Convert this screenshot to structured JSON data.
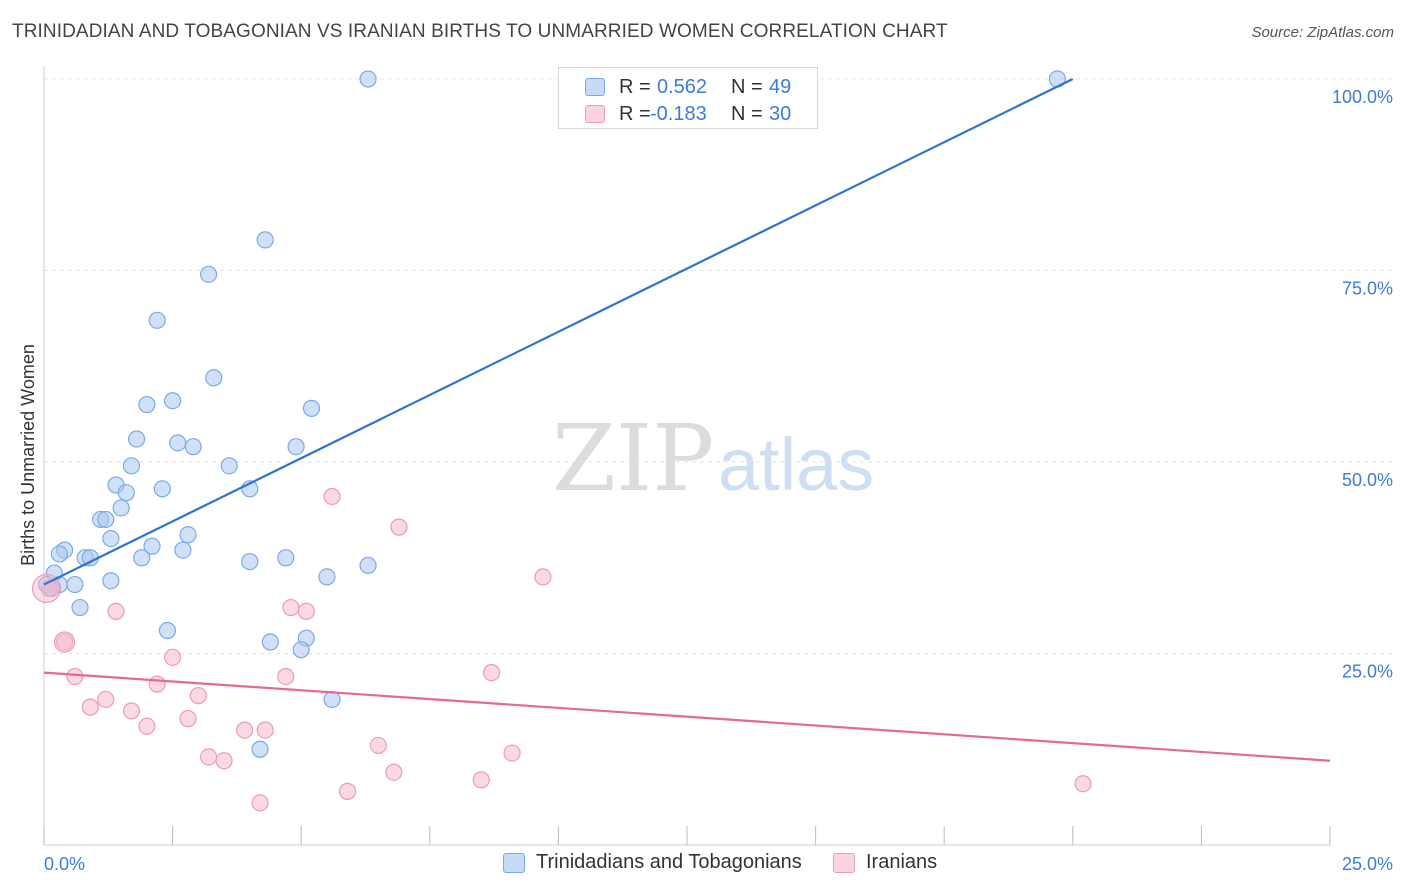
{
  "header": {
    "title": "TRINIDADIAN AND TOBAGONIAN VS IRANIAN BIRTHS TO UNMARRIED WOMEN CORRELATION CHART",
    "source": "Source: ZipAtlas.com"
  },
  "watermark": {
    "zip": "ZIP",
    "atlas": "atlas"
  },
  "stats_legend": [
    {
      "r_label": "R =",
      "r_value": "0.562",
      "n_label": "N =",
      "n_value": "49",
      "color": "#a9c8f1"
    },
    {
      "r_label": "R =",
      "r_value": "-0.183",
      "n_label": "N =",
      "n_value": "30",
      "color": "#f6bacb"
    }
  ],
  "bottom_legend": [
    {
      "label": "Trinidadians and Tobagonians",
      "color": "#a9c8f1"
    },
    {
      "label": "Iranians",
      "color": "#f6bacb"
    }
  ],
  "chart_data": {
    "type": "scatter",
    "title": "TRINIDADIAN AND TOBAGONIAN VS IRANIAN BIRTHS TO UNMARRIED WOMEN CORRELATION CHART",
    "xlabel": "",
    "ylabel": "Births to Unmarried Women",
    "xlim": [
      0,
      25
    ],
    "ylim": [
      0,
      100
    ],
    "x_tick_labels": [
      "0.0%",
      "25.0%"
    ],
    "y_ticks": [
      25,
      50,
      75,
      100
    ],
    "y_tick_labels": [
      "25.0%",
      "50.0%",
      "75.0%",
      "100.0%"
    ],
    "grid": "horizontal dashed",
    "legend": "top-center and bottom",
    "series": [
      {
        "name": "Trinidadians and Tobagonians",
        "color": "#7aaae6",
        "fill": "#a9c8f1",
        "trend": {
          "x": [
            0,
            20
          ],
          "y": [
            34,
            100
          ]
        },
        "points": [
          {
            "x": 6.3,
            "y": 100
          },
          {
            "x": 19.7,
            "y": 100
          },
          {
            "x": 4.3,
            "y": 79
          },
          {
            "x": 3.2,
            "y": 74.5
          },
          {
            "x": 2.2,
            "y": 68.5
          },
          {
            "x": 3.3,
            "y": 61
          },
          {
            "x": 2.0,
            "y": 57.5
          },
          {
            "x": 5.2,
            "y": 57
          },
          {
            "x": 2.5,
            "y": 58
          },
          {
            "x": 1.8,
            "y": 53
          },
          {
            "x": 2.6,
            "y": 52.5
          },
          {
            "x": 2.9,
            "y": 52
          },
          {
            "x": 4.9,
            "y": 52
          },
          {
            "x": 1.7,
            "y": 49.5
          },
          {
            "x": 3.6,
            "y": 49.5
          },
          {
            "x": 1.4,
            "y": 47
          },
          {
            "x": 1.6,
            "y": 46
          },
          {
            "x": 2.3,
            "y": 46.5
          },
          {
            "x": 4.0,
            "y": 46.5
          },
          {
            "x": 1.5,
            "y": 44
          },
          {
            "x": 1.1,
            "y": 42.5
          },
          {
            "x": 1.2,
            "y": 42.5
          },
          {
            "x": 2.8,
            "y": 40.5
          },
          {
            "x": 1.3,
            "y": 40
          },
          {
            "x": 2.1,
            "y": 39
          },
          {
            "x": 0.4,
            "y": 38.5
          },
          {
            "x": 0.3,
            "y": 38
          },
          {
            "x": 1.9,
            "y": 37.5
          },
          {
            "x": 2.7,
            "y": 38.5
          },
          {
            "x": 0.8,
            "y": 37.5
          },
          {
            "x": 0.9,
            "y": 37.5
          },
          {
            "x": 4.7,
            "y": 37.5
          },
          {
            "x": 4.0,
            "y": 37
          },
          {
            "x": 6.3,
            "y": 36.5
          },
          {
            "x": 0.2,
            "y": 35.5
          },
          {
            "x": 1.3,
            "y": 34.5
          },
          {
            "x": 5.5,
            "y": 35
          },
          {
            "x": 0.1,
            "y": 33.5
          },
          {
            "x": 0.3,
            "y": 34
          },
          {
            "x": 0.6,
            "y": 34
          },
          {
            "x": 0.7,
            "y": 31
          },
          {
            "x": 2.4,
            "y": 28
          },
          {
            "x": 4.4,
            "y": 26.5
          },
          {
            "x": 5.1,
            "y": 27
          },
          {
            "x": 5.0,
            "y": 25.5
          },
          {
            "x": 5.6,
            "y": 19
          },
          {
            "x": 4.2,
            "y": 12.5
          },
          {
            "x": 0.05,
            "y": 34
          },
          {
            "x": 0.15,
            "y": 33.5
          }
        ]
      },
      {
        "name": "Iranians",
        "color": "#ea9db6",
        "fill": "#f6bacb",
        "trend": {
          "x": [
            0,
            25
          ],
          "y": [
            22.5,
            11
          ]
        },
        "points": [
          {
            "x": 0.1,
            "y": 33.5
          },
          {
            "x": 0.4,
            "y": 26.5
          },
          {
            "x": 0.6,
            "y": 22
          },
          {
            "x": 0.9,
            "y": 18
          },
          {
            "x": 1.2,
            "y": 19
          },
          {
            "x": 1.4,
            "y": 30.5
          },
          {
            "x": 1.7,
            "y": 17.5
          },
          {
            "x": 2.0,
            "y": 15.5
          },
          {
            "x": 2.2,
            "y": 21
          },
          {
            "x": 2.5,
            "y": 24.5
          },
          {
            "x": 2.8,
            "y": 16.5
          },
          {
            "x": 3.0,
            "y": 19.5
          },
          {
            "x": 3.2,
            "y": 11.5
          },
          {
            "x": 3.5,
            "y": 11
          },
          {
            "x": 3.9,
            "y": 15
          },
          {
            "x": 4.3,
            "y": 15
          },
          {
            "x": 4.2,
            "y": 5.5
          },
          {
            "x": 4.7,
            "y": 22
          },
          {
            "x": 4.8,
            "y": 31
          },
          {
            "x": 5.1,
            "y": 30.5
          },
          {
            "x": 5.6,
            "y": 45.5
          },
          {
            "x": 5.9,
            "y": 7
          },
          {
            "x": 6.5,
            "y": 13
          },
          {
            "x": 6.8,
            "y": 9.5
          },
          {
            "x": 6.9,
            "y": 41.5
          },
          {
            "x": 8.5,
            "y": 8.5
          },
          {
            "x": 8.7,
            "y": 22.5
          },
          {
            "x": 9.1,
            "y": 12
          },
          {
            "x": 9.7,
            "y": 35
          },
          {
            "x": 20.2,
            "y": 8
          }
        ]
      }
    ]
  }
}
